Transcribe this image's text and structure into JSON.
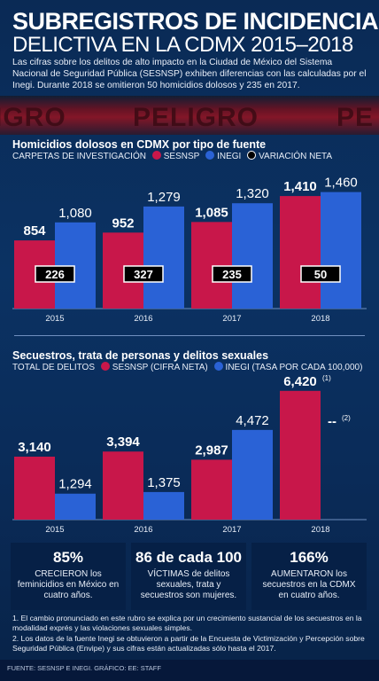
{
  "header": {
    "title_line1": "SUBREGISTROS DE INCIDENCIA",
    "title_line2": "DELICTIVA EN LA CDMX 2015–2018",
    "intro": "Las cifras sobre los delitos de alto impacto en la Ciudad de México del Sistema Nacional de Seguridad Pública (SESNSP) exhiben diferencias con las calculadas por el Inegi. Durante 2018 se omitieron 50 homicidios dolosos y 235 en 2017.",
    "banner_words": [
      "IGRO",
      "PELIGRO",
      "PE"
    ]
  },
  "colors": {
    "sesnsp": "#c8174a",
    "inegi": "#2a62d6",
    "variation_box": "#000000"
  },
  "chart1": {
    "title": "Homicidios dolosos en CDMX por tipo de fuente",
    "legend": {
      "lead": "CARPETAS DE INVESTIGACIÓN",
      "sesnsp": "SESNSP",
      "inegi": "INEGI",
      "variation": "VARIACIÓN NETA"
    }
  },
  "chart2": {
    "title": "Secuestros, trata de personas y delitos sexuales",
    "legend": {
      "lead": "TOTAL DE DELITOS",
      "sesnsp": "SESNSP (CIFRA NETA)",
      "inegi": "INEGI  (TASA POR CADA 100,000)"
    },
    "note_mark_sesnsp": "(1)",
    "missing_inegi_label": "--",
    "note_mark_inegi": "(2)"
  },
  "chart_data": [
    {
      "type": "bar",
      "categories": [
        "2015",
        "2016",
        "2017",
        "2018"
      ],
      "series": [
        {
          "name": "SESNSP",
          "values": [
            854,
            952,
            1085,
            1410
          ],
          "labels": [
            "854",
            "952",
            "1,085",
            "1,410"
          ]
        },
        {
          "name": "INEGI",
          "values": [
            1080,
            1279,
            1320,
            1460
          ],
          "labels": [
            "1,080",
            "1,279",
            "1,320",
            "1,460"
          ]
        },
        {
          "name": "VARIACIÓN NETA",
          "values": [
            226,
            327,
            235,
            50
          ],
          "labels": [
            "226",
            "327",
            "235",
            "50"
          ]
        }
      ],
      "ylim": [
        0,
        1500
      ]
    },
    {
      "type": "bar",
      "categories": [
        "2015",
        "2016",
        "2017",
        "2018"
      ],
      "series": [
        {
          "name": "SESNSP (CIFRA NETA)",
          "values": [
            3140,
            3394,
            2987,
            6420
          ],
          "labels": [
            "3,140",
            "3,394",
            "2,987",
            "6,420"
          ]
        },
        {
          "name": "INEGI (TASA POR CADA 100,000)",
          "values": [
            1294,
            1375,
            4472,
            null
          ],
          "labels": [
            "1,294",
            "1,375",
            "4,472",
            ""
          ]
        }
      ],
      "ylim": [
        0,
        6500
      ]
    }
  ],
  "stats": [
    {
      "big": "85%",
      "text": "CRECIERON los feminicidios en México en cuatro años."
    },
    {
      "big": "86 de cada 100",
      "text": "VÍCTIMAS de delitos sexuales, trata y secuestros son mujeres."
    },
    {
      "big": "166%",
      "text": "AUMENTARON los secuestros en la CDMX en cuatro años."
    }
  ],
  "notes": [
    "1. El cambio pronunciado en este rubro se explica por un crecimiento sustancial de los secuestros en la modalidad exprés y las violaciones sexuales simples.",
    "2. Los datos de la fuente Inegi se obtuvieron a partir de la Encuesta de Victimización y Percepción sobre Seguridad Pública (Envipe) y sus cifras están actualizadas sólo hasta el 2017."
  ],
  "footer": "FUENTE: SESNSP E INEGI. GRÁFICO: EE: STAFF"
}
